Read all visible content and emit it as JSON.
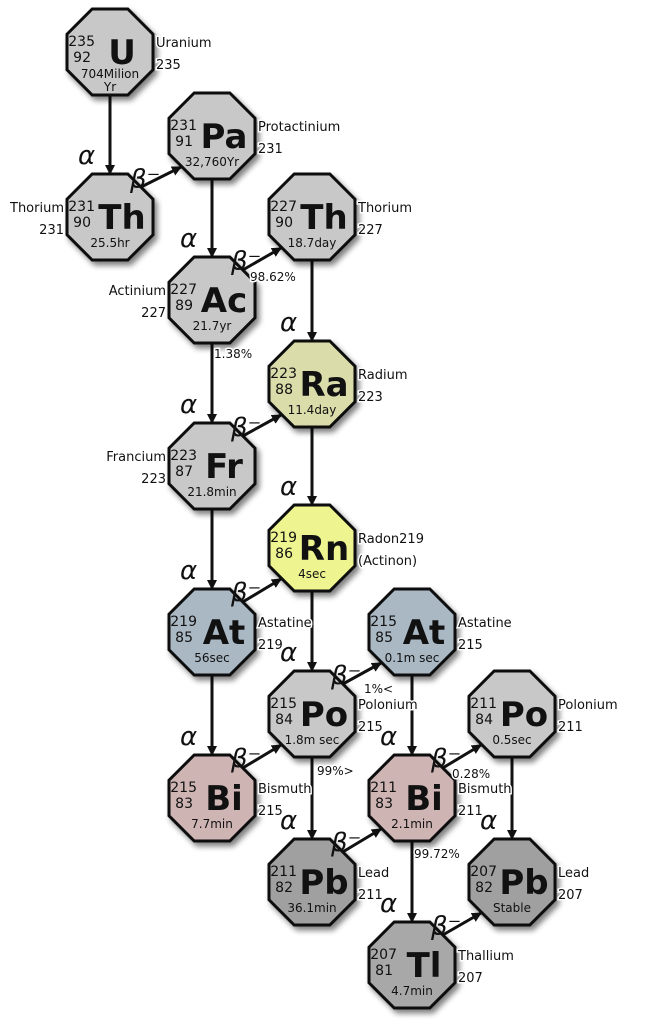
{
  "nodes": [
    {
      "id": "U235",
      "mass": "235",
      "z": "92",
      "symbol": "U",
      "halflife": [
        "704Milion",
        "Yr"
      ],
      "name": "Uranium",
      "label_mass": "235",
      "color": "#c8c8c8"
    },
    {
      "id": "Pa231",
      "mass": "231",
      "z": "91",
      "symbol": "Pa",
      "halflife": [
        "32,760Yr"
      ],
      "name": "Protactinium",
      "label_mass": "231",
      "color": "#c8c8c8"
    },
    {
      "id": "Th231",
      "mass": "231",
      "z": "90",
      "symbol": "Th",
      "halflife": [
        "25.5hr"
      ],
      "name": "Thorium",
      "label_mass": "231",
      "color": "#c8c8c8"
    },
    {
      "id": "Th227",
      "mass": "227",
      "z": "90",
      "symbol": "Th",
      "halflife": [
        "18.7day"
      ],
      "name": "Thorium",
      "label_mass": "227",
      "color": "#c8c8c8"
    },
    {
      "id": "Ac227",
      "mass": "227",
      "z": "89",
      "symbol": "Ac",
      "halflife": [
        "21.7yr"
      ],
      "name": "Actinium",
      "label_mass": "227",
      "color": "#c8c8c8"
    },
    {
      "id": "Ra223",
      "mass": "223",
      "z": "88",
      "symbol": "Ra",
      "halflife": [
        "11.4day"
      ],
      "name": "Radium",
      "label_mass": "223",
      "color": "#dadcaa"
    },
    {
      "id": "Fr223",
      "mass": "223",
      "z": "87",
      "symbol": "Fr",
      "halflife": [
        "21.8min"
      ],
      "name": "Francium",
      "label_mass": "223",
      "color": "#c8c8c8"
    },
    {
      "id": "Rn219",
      "mass": "219",
      "z": "86",
      "symbol": "Rn",
      "halflife": [
        "4sec"
      ],
      "name": "Radon219",
      "label_mass": "(Actinon)",
      "color": "#eef590"
    },
    {
      "id": "At219",
      "mass": "219",
      "z": "85",
      "symbol": "At",
      "halflife": [
        "56sec"
      ],
      "name": "Astatine",
      "label_mass": "219",
      "color": "#aab8c4"
    },
    {
      "id": "At215",
      "mass": "215",
      "z": "85",
      "symbol": "At",
      "halflife": [
        "0.1m sec"
      ],
      "name": "Astatine",
      "label_mass": "215",
      "color": "#aab8c4"
    },
    {
      "id": "Po215",
      "mass": "215",
      "z": "84",
      "symbol": "Po",
      "halflife": [
        "1.8m sec"
      ],
      "name": "Polonium",
      "label_mass": "215",
      "color": "#c8c8c8"
    },
    {
      "id": "Po211",
      "mass": "211",
      "z": "84",
      "symbol": "Po",
      "halflife": [
        "0.5sec"
      ],
      "name": "Polonium",
      "label_mass": "211",
      "color": "#c8c8c8"
    },
    {
      "id": "Bi215",
      "mass": "215",
      "z": "83",
      "symbol": "Bi",
      "halflife": [
        "7.7min"
      ],
      "name": "Bismuth",
      "label_mass": "215",
      "color": "#cfb4b4"
    },
    {
      "id": "Bi211",
      "mass": "211",
      "z": "83",
      "symbol": "Bi",
      "halflife": [
        "2.1min"
      ],
      "name": "Bismuth",
      "label_mass": "211",
      "color": "#cfb4b4"
    },
    {
      "id": "Pb211",
      "mass": "211",
      "z": "82",
      "symbol": "Pb",
      "halflife": [
        "36.1min"
      ],
      "name": "Lead",
      "label_mass": "211",
      "color": "#a0a0a0"
    },
    {
      "id": "Pb207",
      "mass": "207",
      "z": "82",
      "symbol": "Pb",
      "halflife": [
        "Stable"
      ],
      "name": "Lead",
      "label_mass": "207",
      "color": "#a0a0a0"
    },
    {
      "id": "Tl207",
      "mass": "207",
      "z": "81",
      "symbol": "Tl",
      "halflife": [
        "4.7min"
      ],
      "name": "Thallium",
      "label_mass": "207",
      "color": "#a8a8a8"
    }
  ],
  "decay_symbols": {
    "alpha": "α",
    "beta": "β⁻"
  },
  "edges": [
    {
      "from": "U235",
      "to": "Th231",
      "type": "alpha"
    },
    {
      "from": "Th231",
      "to": "Pa231",
      "type": "beta"
    },
    {
      "from": "Pa231",
      "to": "Ac227",
      "type": "alpha"
    },
    {
      "from": "Ac227",
      "to": "Th227",
      "type": "beta",
      "branch": "98.62%"
    },
    {
      "from": "Th227",
      "to": "Ra223",
      "type": "alpha"
    },
    {
      "from": "Ac227",
      "to": "Fr223",
      "type": "alpha",
      "branch": "1.38%"
    },
    {
      "from": "Fr223",
      "to": "Ra223",
      "type": "beta"
    },
    {
      "from": "Ra223",
      "to": "Rn219",
      "type": "alpha"
    },
    {
      "from": "Fr223",
      "to": "At219",
      "type": "alpha"
    },
    {
      "from": "At219",
      "to": "Rn219",
      "type": "beta"
    },
    {
      "from": "At219",
      "to": "Bi215",
      "type": "alpha"
    },
    {
      "from": "Rn219",
      "to": "Po215",
      "type": "alpha"
    },
    {
      "from": "Bi215",
      "to": "Po215",
      "type": "beta"
    },
    {
      "from": "Po215",
      "to": "At215",
      "type": "beta",
      "branch": "1%<"
    },
    {
      "from": "Po215",
      "to": "Pb211",
      "type": "alpha",
      "branch": "99%>"
    },
    {
      "from": "At215",
      "to": "Bi211",
      "type": "alpha"
    },
    {
      "from": "Pb211",
      "to": "Bi211",
      "type": "beta"
    },
    {
      "from": "Bi211",
      "to": "Po211",
      "type": "beta",
      "branch": "0.28%"
    },
    {
      "from": "Bi211",
      "to": "Tl207",
      "type": "alpha",
      "branch": "99.72%"
    },
    {
      "from": "Po211",
      "to": "Pb207",
      "type": "alpha"
    },
    {
      "from": "Tl207",
      "to": "Pb207",
      "type": "beta"
    }
  ]
}
